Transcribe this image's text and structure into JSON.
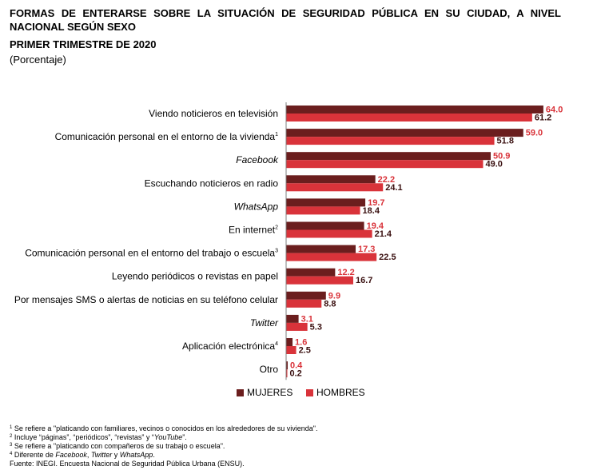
{
  "header": {
    "title_line1": "FORMAS DE ENTERARSE SOBRE LA SITUACIÓN DE SEGURIDAD PÚBLICA EN SU CIUDAD, A NIVEL",
    "title_line2": "NACIONAL SEGÚN SEXO",
    "title_line3": "PRIMER TRIMESTRE DE 2020",
    "unit": "(Porcentaje)"
  },
  "colors": {
    "mujeres": "#6b1e1e",
    "hombres": "#d9333a",
    "label_mujeres": "#d9333a",
    "label_hombres": "#3a1010"
  },
  "chart_data": {
    "type": "bar",
    "orientation": "horizontal",
    "title": "FORMAS DE ENTERARSE SOBRE LA SITUACIÓN DE SEGURIDAD PÚBLICA EN SU CIUDAD, A NIVEL NACIONAL SEGÚN SEXO",
    "subtitle": "PRIMER TRIMESTRE DE 2020",
    "ylabel": "(Porcentaje)",
    "xlim": [
      0,
      64
    ],
    "categories": [
      {
        "label": "Viendo noticieros en televisión",
        "sup": "",
        "italic": false
      },
      {
        "label": "Comunicación personal en el entorno de la vivienda",
        "sup": "1",
        "italic": false
      },
      {
        "label": "Facebook",
        "sup": "",
        "italic": true
      },
      {
        "label": "Escuchando noticieros en radio",
        "sup": "",
        "italic": false
      },
      {
        "label": "WhatsApp",
        "sup": "",
        "italic": true
      },
      {
        "label": "En internet",
        "sup": "2",
        "italic": false
      },
      {
        "label": "Comunicación personal en el entorno del trabajo o escuela",
        "sup": "3",
        "italic": false
      },
      {
        "label": "Leyendo periódicos o revistas en papel",
        "sup": "",
        "italic": false
      },
      {
        "label": "Por mensajes SMS o alertas de noticias en su teléfono celular",
        "sup": "",
        "italic": false
      },
      {
        "label": "Twitter",
        "sup": "",
        "italic": true
      },
      {
        "label": "Aplicación electrónica",
        "sup": "4",
        "italic": false
      },
      {
        "label": "Otro",
        "sup": "",
        "italic": false
      }
    ],
    "series": [
      {
        "name": "MUJERES",
        "values": [
          64.0,
          59.0,
          50.9,
          22.2,
          19.7,
          19.4,
          17.3,
          12.2,
          9.9,
          3.1,
          1.6,
          0.4
        ]
      },
      {
        "name": "HOMBRES",
        "values": [
          61.2,
          51.8,
          49.0,
          24.1,
          18.4,
          21.4,
          22.5,
          16.7,
          8.8,
          5.3,
          2.5,
          0.2
        ]
      }
    ],
    "legend": [
      "MUJERES",
      "HOMBRES"
    ],
    "legend_position": "bottom"
  },
  "footnotes": {
    "n1": {
      "mark": "1",
      "text": " Se refiere a \"platicando con familiares, vecinos o conocidos en los alrededores de su vivienda\"."
    },
    "n2_mark": "2",
    "n2_a": " Incluye “páginas”, “periódicos”, “revistas” y “",
    "n2_b": "YouTube",
    "n2_c": "”.",
    "n3": {
      "mark": "3",
      "text": " Se refiere a \"platicando con compañeros de su trabajo o escuela\"."
    },
    "n4_mark": "4",
    "n4_a": " Diferente de ",
    "n4_b": "Facebook",
    "n4_c": ", ",
    "n4_d": "Twitter",
    "n4_e": " y ",
    "n4_f": "WhatsApp",
    "n4_g": ".",
    "source": "Fuente: INEGI. Encuesta Nacional de Seguridad Pública Urbana (ENSU)."
  }
}
